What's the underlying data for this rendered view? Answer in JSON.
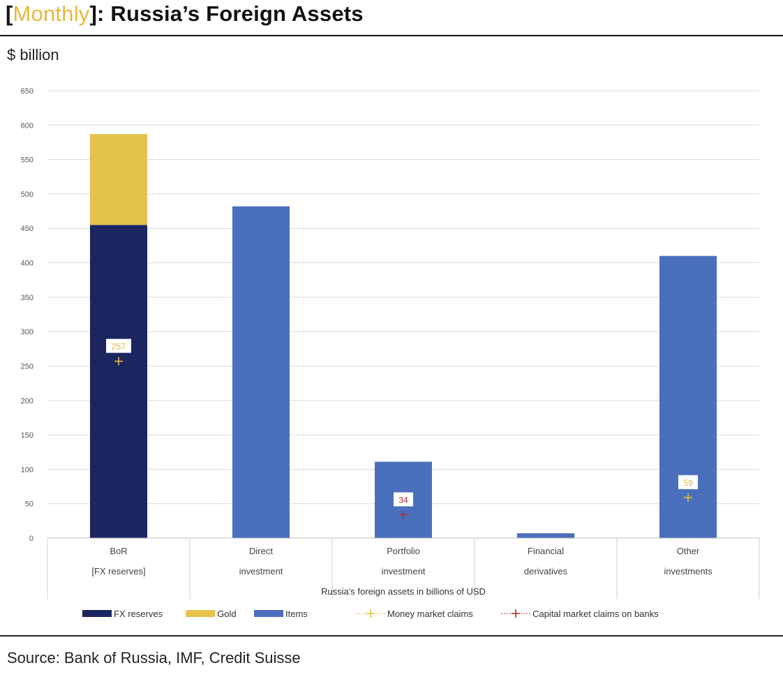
{
  "header": {
    "bracket_open": "[",
    "title_accent": "Monthly",
    "bracket_close": "]",
    "title_rest": ": Russia’s Foreign Assets",
    "unit": "$ billion"
  },
  "footer": {
    "source": "Source: Bank of Russia, IMF, Credit Suisse"
  },
  "chart_data": {
    "type": "bar",
    "stacked": true,
    "xlabel": "Russia's foreign assets in billions of USD",
    "ylabel": "$ billion",
    "ylim": [
      0,
      650
    ],
    "yticks": [
      0,
      50,
      100,
      150,
      200,
      250,
      300,
      350,
      400,
      450,
      500,
      550,
      600,
      650
    ],
    "grid": true,
    "legend_position": "bottom",
    "categories": [
      [
        "BoR",
        "[FX reserves]"
      ],
      [
        "Direct",
        "investment"
      ],
      [
        "Portfolio",
        "investment"
      ],
      [
        "Financial",
        "derivatives"
      ],
      [
        "Other",
        "investments"
      ]
    ],
    "series": [
      {
        "name": "FX reserves",
        "color": "#1b2560",
        "values": [
          455,
          0,
          0,
          0,
          0
        ]
      },
      {
        "name": "Gold",
        "color": "#e5c24c",
        "values": [
          132,
          0,
          0,
          0,
          0
        ]
      },
      {
        "name": "Items",
        "color": "#4a70bd",
        "values": [
          0,
          482,
          111,
          7,
          410
        ]
      }
    ],
    "markers": [
      {
        "name": "Money market claims",
        "color": "#e5b93b",
        "points": [
          {
            "category": 0,
            "value": 257,
            "label": "257"
          },
          {
            "category": 4,
            "value": 59,
            "label": "59"
          }
        ]
      },
      {
        "name": "Capital market claims on banks",
        "color": "#b22a2a",
        "points": [
          {
            "category": 2,
            "value": 34,
            "label": "34"
          }
        ]
      }
    ]
  }
}
